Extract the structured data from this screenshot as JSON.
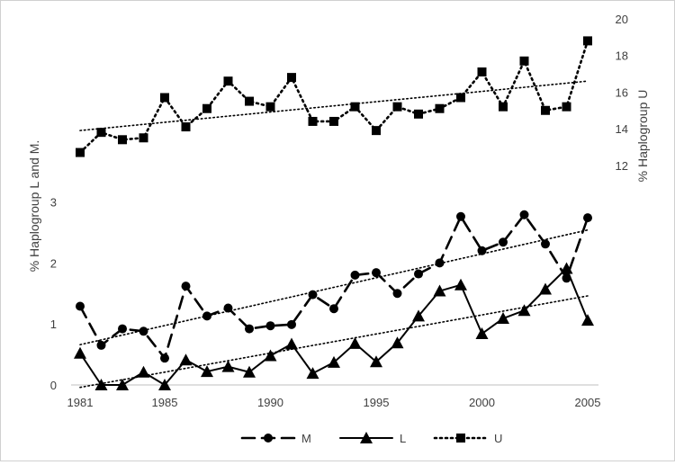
{
  "chart_data": {
    "type": "line",
    "title": "",
    "xlabel": "",
    "ylabel_left": "% Haplogroup L and M.",
    "ylabel_right": "% Haplogroup U",
    "x": [
      1981,
      1982,
      1983,
      1984,
      1985,
      1986,
      1987,
      1988,
      1989,
      1990,
      1991,
      1992,
      1993,
      1994,
      1995,
      1996,
      1997,
      1998,
      1999,
      2000,
      2001,
      2002,
      2003,
      2004,
      2005
    ],
    "x_ticks": [
      "1981",
      "1985",
      "1990",
      "1995",
      "2000",
      "2005"
    ],
    "x_tick_values": [
      1981,
      1985,
      1990,
      1995,
      2000,
      2005
    ],
    "left_axis": {
      "ticks": [
        "0",
        "1",
        "2",
        "3"
      ],
      "tick_values": [
        0,
        1,
        2,
        3
      ],
      "ylim": [
        0,
        6
      ]
    },
    "right_axis": {
      "ticks": [
        "12",
        "14",
        "16",
        "18",
        "20"
      ],
      "tick_values": [
        12,
        14,
        16,
        18,
        20
      ],
      "ylim": [
        0,
        20
      ]
    },
    "legend_position": "bottom",
    "grid": false,
    "series": [
      {
        "name": "M",
        "axis": "left",
        "marker": "circle",
        "dash": "long-dash",
        "values": [
          1.29,
          0.65,
          0.92,
          0.88,
          0.44,
          1.62,
          1.13,
          1.26,
          0.92,
          0.97,
          0.99,
          1.48,
          1.25,
          1.8,
          1.84,
          1.5,
          1.82,
          2.0,
          2.76,
          2.2,
          2.34,
          2.79,
          2.31,
          1.75,
          2.74
        ],
        "trend": [
          0.66,
          2.54
        ]
      },
      {
        "name": "L",
        "axis": "left",
        "marker": "triangle",
        "dash": "solid",
        "values": [
          0.52,
          0.0,
          0.0,
          0.21,
          0.0,
          0.41,
          0.22,
          0.3,
          0.21,
          0.48,
          0.67,
          0.19,
          0.37,
          0.68,
          0.38,
          0.69,
          1.13,
          1.54,
          1.64,
          0.84,
          1.09,
          1.22,
          1.57,
          1.91,
          1.06
        ],
        "trend": [
          -0.04,
          1.46
        ]
      },
      {
        "name": "U",
        "axis": "right",
        "marker": "square",
        "dash": "dotted",
        "values": [
          12.7,
          13.8,
          13.4,
          13.5,
          15.7,
          14.1,
          15.1,
          16.6,
          15.5,
          15.2,
          16.8,
          14.4,
          14.4,
          15.2,
          13.9,
          15.2,
          14.8,
          15.1,
          15.7,
          17.1,
          15.2,
          17.7,
          15.0,
          15.2,
          18.8
        ],
        "trend": [
          13.9,
          16.6
        ]
      }
    ],
    "colors": {
      "line": "#000000",
      "text": "#404040",
      "axis": "#bfbfbf",
      "frame": "#d0d0d0"
    }
  }
}
